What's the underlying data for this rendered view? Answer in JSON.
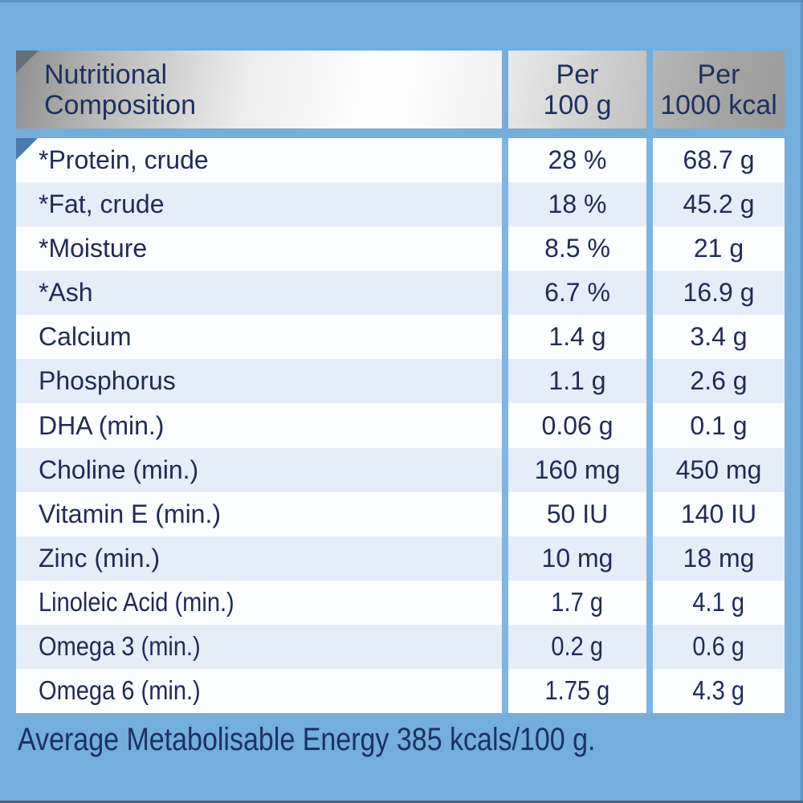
{
  "colors": {
    "background": "#73aedd",
    "row_white": "#fcfdff",
    "row_alt_blue": "#e5eef8",
    "text_navy": "#202c55",
    "header_text_navy": "#1d3160",
    "gap_stripe_blue": "#7db6e3"
  },
  "header": {
    "col1": {
      "line1": "Nutritional",
      "line2": "Composition"
    },
    "col2": {
      "line1": "Per",
      "line2": "100 g"
    },
    "col3": {
      "line1": "Per",
      "line2": "1000 kcal"
    }
  },
  "table": {
    "rows": [
      {
        "label": "*Protein, crude",
        "per_100g": "28 %",
        "per_1000kcal": "68.7 g"
      },
      {
        "label": "*Fat, crude",
        "per_100g": "18 %",
        "per_1000kcal": "45.2 g"
      },
      {
        "label": "*Moisture",
        "per_100g": "8.5 %",
        "per_1000kcal": "21 g"
      },
      {
        "label": "*Ash",
        "per_100g": "6.7 %",
        "per_1000kcal": "16.9 g"
      },
      {
        "label": "Calcium",
        "per_100g": "1.4 g",
        "per_1000kcal": "3.4 g"
      },
      {
        "label": "Phosphorus",
        "per_100g": "1.1 g",
        "per_1000kcal": "2.6 g"
      },
      {
        "label": "DHA (min.)",
        "per_100g": "0.06 g",
        "per_1000kcal": "0.1 g"
      },
      {
        "label": "Choline (min.)",
        "per_100g": "160 mg",
        "per_1000kcal": "450 mg"
      },
      {
        "label": "Vitamin E (min.)",
        "per_100g": "50 IU",
        "per_1000kcal": "140 IU"
      },
      {
        "label": "Zinc (min.)",
        "per_100g": "10 mg",
        "per_1000kcal": "18 mg"
      },
      {
        "label": "Linoleic Acid (min.)",
        "per_100g": "1.7 g",
        "per_1000kcal": "4.1 g"
      },
      {
        "label": "Omega 3 (min.)",
        "per_100g": "0.2 g",
        "per_1000kcal": "0.6 g"
      },
      {
        "label": "Omega 6 (min.)",
        "per_100g": "1.75 g",
        "per_1000kcal": "4.3 g"
      }
    ]
  },
  "footer": {
    "text": "Average Metabolisable Energy 385 kcals/100 g."
  }
}
